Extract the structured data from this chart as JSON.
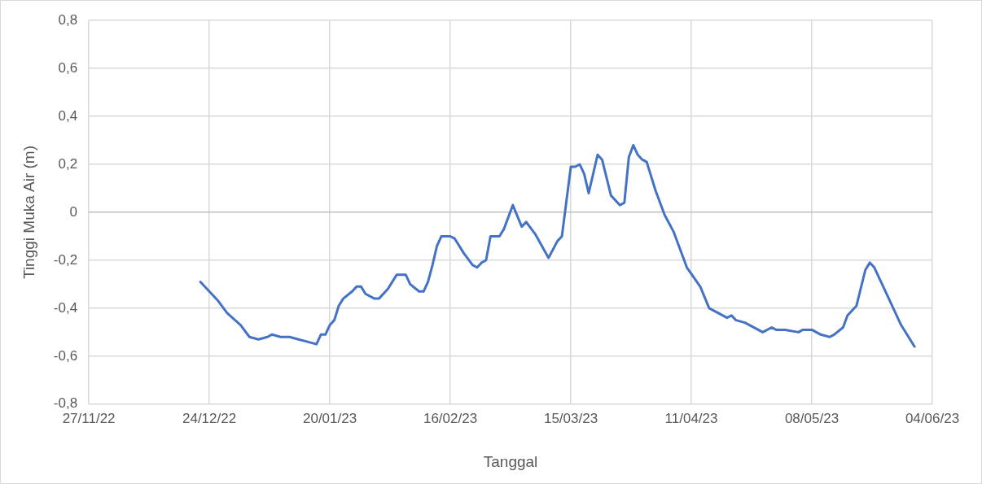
{
  "chart_data": {
    "type": "line",
    "xlabel": "Tanggal",
    "ylabel": "Tinggi Muka Air (m)",
    "x": [
      "2022-12-22",
      "2022-12-24",
      "2022-12-26",
      "2022-12-28",
      "2022-12-31",
      "2023-01-02",
      "2023-01-04",
      "2023-01-06",
      "2023-01-07",
      "2023-01-09",
      "2023-01-11",
      "2023-01-13",
      "2023-01-15",
      "2023-01-17",
      "2023-01-18",
      "2023-01-19",
      "2023-01-20",
      "2023-01-21",
      "2023-01-22",
      "2023-01-23",
      "2023-01-25",
      "2023-01-26",
      "2023-01-27",
      "2023-01-28",
      "2023-01-30",
      "2023-01-31",
      "2023-02-02",
      "2023-02-04",
      "2023-02-05",
      "2023-02-06",
      "2023-02-07",
      "2023-02-09",
      "2023-02-10",
      "2023-02-11",
      "2023-02-12",
      "2023-02-13",
      "2023-02-14",
      "2023-02-16",
      "2023-02-17",
      "2023-02-19",
      "2023-02-21",
      "2023-02-22",
      "2023-02-23",
      "2023-02-24",
      "2023-02-25",
      "2023-02-27",
      "2023-02-28",
      "2023-03-02",
      "2023-03-04",
      "2023-03-05",
      "2023-03-07",
      "2023-03-10",
      "2023-03-12",
      "2023-03-13",
      "2023-03-15",
      "2023-03-16",
      "2023-03-17",
      "2023-03-18",
      "2023-03-19",
      "2023-03-21",
      "2023-03-22",
      "2023-03-24",
      "2023-03-26",
      "2023-03-27",
      "2023-03-28",
      "2023-03-29",
      "2023-03-30",
      "2023-03-31",
      "2023-04-01",
      "2023-04-03",
      "2023-04-05",
      "2023-04-07",
      "2023-04-10",
      "2023-04-13",
      "2023-04-15",
      "2023-04-19",
      "2023-04-20",
      "2023-04-21",
      "2023-04-23",
      "2023-04-27",
      "2023-04-29",
      "2023-04-30",
      "2023-05-02",
      "2023-05-05",
      "2023-05-06",
      "2023-05-08",
      "2023-05-10",
      "2023-05-12",
      "2023-05-13",
      "2023-05-15",
      "2023-05-16",
      "2023-05-18",
      "2023-05-20",
      "2023-05-21",
      "2023-05-22",
      "2023-05-25",
      "2023-05-28",
      "2023-05-31"
    ],
    "series": [
      {
        "color": "#4472c4",
        "values": [
          -0.29,
          -0.33,
          -0.37,
          -0.42,
          -0.47,
          -0.52,
          -0.53,
          -0.52,
          -0.51,
          -0.52,
          -0.52,
          -0.53,
          -0.54,
          -0.55,
          -0.51,
          -0.51,
          -0.47,
          -0.45,
          -0.39,
          -0.36,
          -0.33,
          -0.31,
          -0.31,
          -0.34,
          -0.36,
          -0.36,
          -0.32,
          -0.26,
          -0.26,
          -0.26,
          -0.3,
          -0.33,
          -0.33,
          -0.29,
          -0.22,
          -0.14,
          -0.1,
          -0.1,
          -0.11,
          -0.17,
          -0.22,
          -0.23,
          -0.21,
          -0.2,
          -0.1,
          -0.1,
          -0.07,
          0.03,
          -0.06,
          -0.04,
          -0.09,
          -0.19,
          -0.12,
          -0.1,
          0.19,
          0.19,
          0.2,
          0.16,
          0.08,
          0.24,
          0.22,
          0.07,
          0.03,
          0.04,
          0.23,
          0.28,
          0.24,
          0.22,
          0.21,
          0.09,
          -0.01,
          -0.08,
          -0.23,
          -0.31,
          -0.4,
          -0.44,
          -0.43,
          -0.45,
          -0.46,
          -0.5,
          -0.48,
          -0.49,
          -0.49,
          -0.5,
          -0.49,
          -0.49,
          -0.51,
          -0.52,
          -0.51,
          -0.48,
          -0.43,
          -0.39,
          -0.24,
          -0.21,
          -0.23,
          -0.35,
          -0.47,
          -0.56
        ]
      }
    ],
    "xlim": [
      "2022-11-27",
      "2023-06-04"
    ],
    "xticks": [
      {
        "value": "2022-11-27",
        "label": "27/11/22"
      },
      {
        "value": "2022-12-24",
        "label": "24/12/22"
      },
      {
        "value": "2023-01-20",
        "label": "20/01/23"
      },
      {
        "value": "2023-02-16",
        "label": "16/02/23"
      },
      {
        "value": "2023-03-15",
        "label": "15/03/23"
      },
      {
        "value": "2023-04-11",
        "label": "11/04/23"
      },
      {
        "value": "2023-05-08",
        "label": "08/05/23"
      },
      {
        "value": "2023-06-04",
        "label": "04/06/23"
      }
    ],
    "ylim": [
      -0.8,
      0.8
    ],
    "yticks": [
      {
        "value": -0.8,
        "label": "-0,8"
      },
      {
        "value": -0.6,
        "label": "-0,6"
      },
      {
        "value": -0.4,
        "label": "-0,4"
      },
      {
        "value": -0.2,
        "label": "-0,2"
      },
      0,
      {
        "value": 0.2,
        "label": "0,2"
      },
      {
        "value": 0.4,
        "label": "0,4"
      },
      {
        "value": 0.6,
        "label": "0,6"
      },
      {
        "value": 0.8,
        "label": "0,8"
      }
    ],
    "grid": true,
    "legend": false,
    "marker": "none",
    "line_style": "solid"
  }
}
